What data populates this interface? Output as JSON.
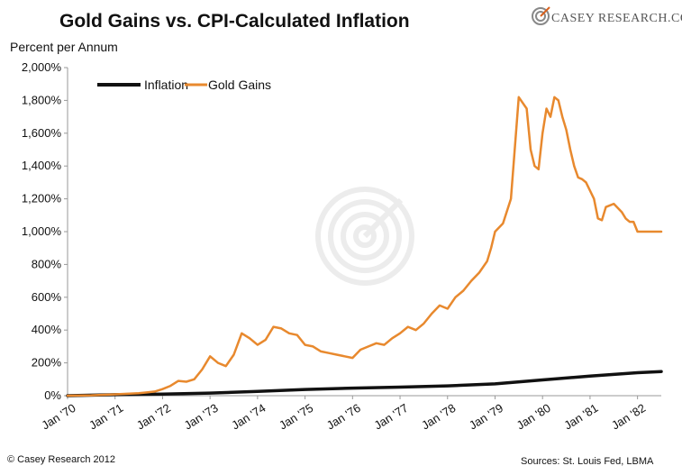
{
  "brand": {
    "logo_text": "CASEY RESEARCH.COM"
  },
  "chart_data": {
    "type": "line",
    "title": "Gold Gains vs. CPI-Calculated Inflation",
    "ylabel": "Percent per Annum",
    "xlabel": "",
    "ylim": [
      0,
      2000
    ],
    "yticks": [
      0,
      200,
      400,
      600,
      800,
      1000,
      1200,
      1400,
      1600,
      1800,
      2000
    ],
    "ytick_labels": [
      "0%",
      "200%",
      "400%",
      "600%",
      "800%",
      "1,000%",
      "1,200%",
      "1,400%",
      "1,600%",
      "1,800%",
      "2,000%"
    ],
    "xlim": [
      0,
      150
    ],
    "xticks": [
      0,
      12,
      24,
      36,
      48,
      60,
      72,
      84,
      96,
      108,
      120,
      132,
      144
    ],
    "xtick_labels": [
      "Jan '70",
      "Jan '71",
      "Jan '72",
      "Jan '73",
      "Jan '74",
      "Jan '75",
      "Jan '76",
      "Jan '77",
      "Jan '78",
      "Jan '79",
      "Jan '80",
      "Jan '81",
      "Jan '82"
    ],
    "grid": false,
    "legend_position": "top-left",
    "series": [
      {
        "name": "Inflation",
        "color": "#111111",
        "x": [
          0,
          12,
          24,
          36,
          48,
          60,
          72,
          84,
          96,
          108,
          120,
          132,
          144,
          150
        ],
        "y": [
          0,
          6,
          10,
          16,
          26,
          38,
          46,
          52,
          60,
          72,
          96,
          120,
          140,
          147
        ]
      },
      {
        "name": "Gold Gains",
        "color": "#E8892E",
        "x": [
          0,
          6,
          12,
          18,
          20,
          22,
          24,
          26,
          28,
          30,
          32,
          34,
          36,
          38,
          40,
          42,
          44,
          46,
          48,
          50,
          52,
          54,
          56,
          58,
          60,
          62,
          64,
          66,
          68,
          70,
          72,
          74,
          76,
          78,
          80,
          82,
          84,
          86,
          88,
          90,
          92,
          94,
          96,
          98,
          100,
          102,
          104,
          106,
          107,
          108,
          110,
          112,
          114,
          116,
          117,
          118,
          119,
          120,
          121,
          122,
          123,
          124,
          125,
          126,
          127,
          128,
          129,
          130,
          131,
          132,
          133,
          134,
          135,
          136,
          138,
          140,
          141,
          142,
          143,
          144,
          145,
          146,
          147,
          148,
          149,
          150
        ],
        "y": [
          0,
          2,
          8,
          15,
          20,
          25,
          40,
          60,
          90,
          85,
          100,
          160,
          240,
          200,
          180,
          250,
          380,
          350,
          310,
          340,
          420,
          410,
          380,
          370,
          310,
          300,
          270,
          260,
          250,
          240,
          230,
          280,
          300,
          320,
          310,
          350,
          380,
          420,
          400,
          440,
          500,
          550,
          530,
          600,
          640,
          700,
          750,
          820,
          900,
          1000,
          1050,
          1200,
          1820,
          1750,
          1500,
          1400,
          1380,
          1600,
          1750,
          1700,
          1820,
          1800,
          1700,
          1620,
          1500,
          1400,
          1330,
          1320,
          1300,
          1250,
          1200,
          1080,
          1070,
          1150,
          1170,
          1120,
          1080,
          1060,
          1060,
          1000,
          1000,
          1000,
          1000,
          1000,
          1000,
          1000
        ]
      }
    ],
    "footnote_left": "© Casey Research 2012",
    "footnote_right": "Sources: St. Louis Fed, LBMA"
  }
}
